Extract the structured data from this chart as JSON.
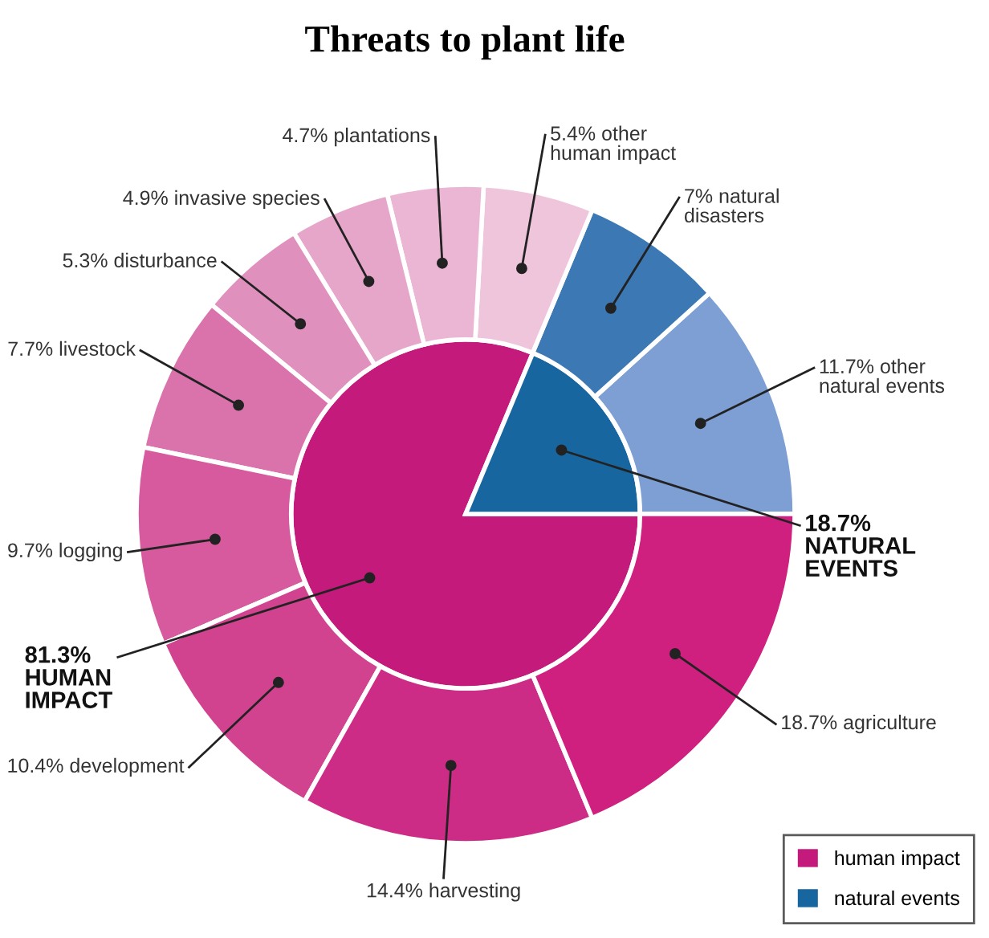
{
  "chart_data": {
    "type": "donut",
    "title": "Threats to plant life",
    "legend": "bottom right",
    "categories": [
      "other\nnatural events",
      "natural\ndisasters",
      "other\nhuman impact",
      "plantations",
      "invasive species",
      "disturbance",
      "livestock",
      "logging",
      "development",
      "harvesting",
      "agriculture",
      "human impact",
      "natural events"
    ],
    "series": [
      {
        "type": "pie",
        "values": [
          null,
          null,
          null,
          null,
          null,
          null,
          null,
          null,
          null,
          null,
          null,
          81.3,
          18.7
        ],
        "colors": [
          null,
          null,
          null,
          null,
          null,
          null,
          null,
          null,
          null,
          null,
          null,
          "#c41a7c",
          "#1766a0"
        ],
        "value_labels": [
          null,
          null,
          null,
          null,
          null,
          null,
          null,
          null,
          null,
          null,
          null,
          "81.3%\nHUMAN\nIMPACT",
          "18.7%\nNATURAL\nEVENTS"
        ]
      },
      {
        "values": [
          11.7,
          7,
          5.4,
          4.7,
          4.9,
          5.3,
          7.7,
          9.7,
          10.4,
          14.4,
          18.7,
          null,
          null
        ],
        "colors": [
          "#7d9fd4",
          "#3b78b4",
          "#efc5dc",
          "#ebb6d3",
          "#e6a6ca",
          "#e090bd",
          "#da72ab",
          "#d65a9d",
          "#d1428f",
          "#cd2c86",
          "#cf1f7f",
          null,
          null
        ],
        "value_labels": [
          "11.7%",
          "7%",
          "5.4%",
          "4.7%",
          "4.9%",
          "5.3%",
          "7.7%",
          "9.7%",
          "10.4%",
          "14.4%",
          "18.7%",
          null,
          null
        ]
      }
    ]
  }
}
